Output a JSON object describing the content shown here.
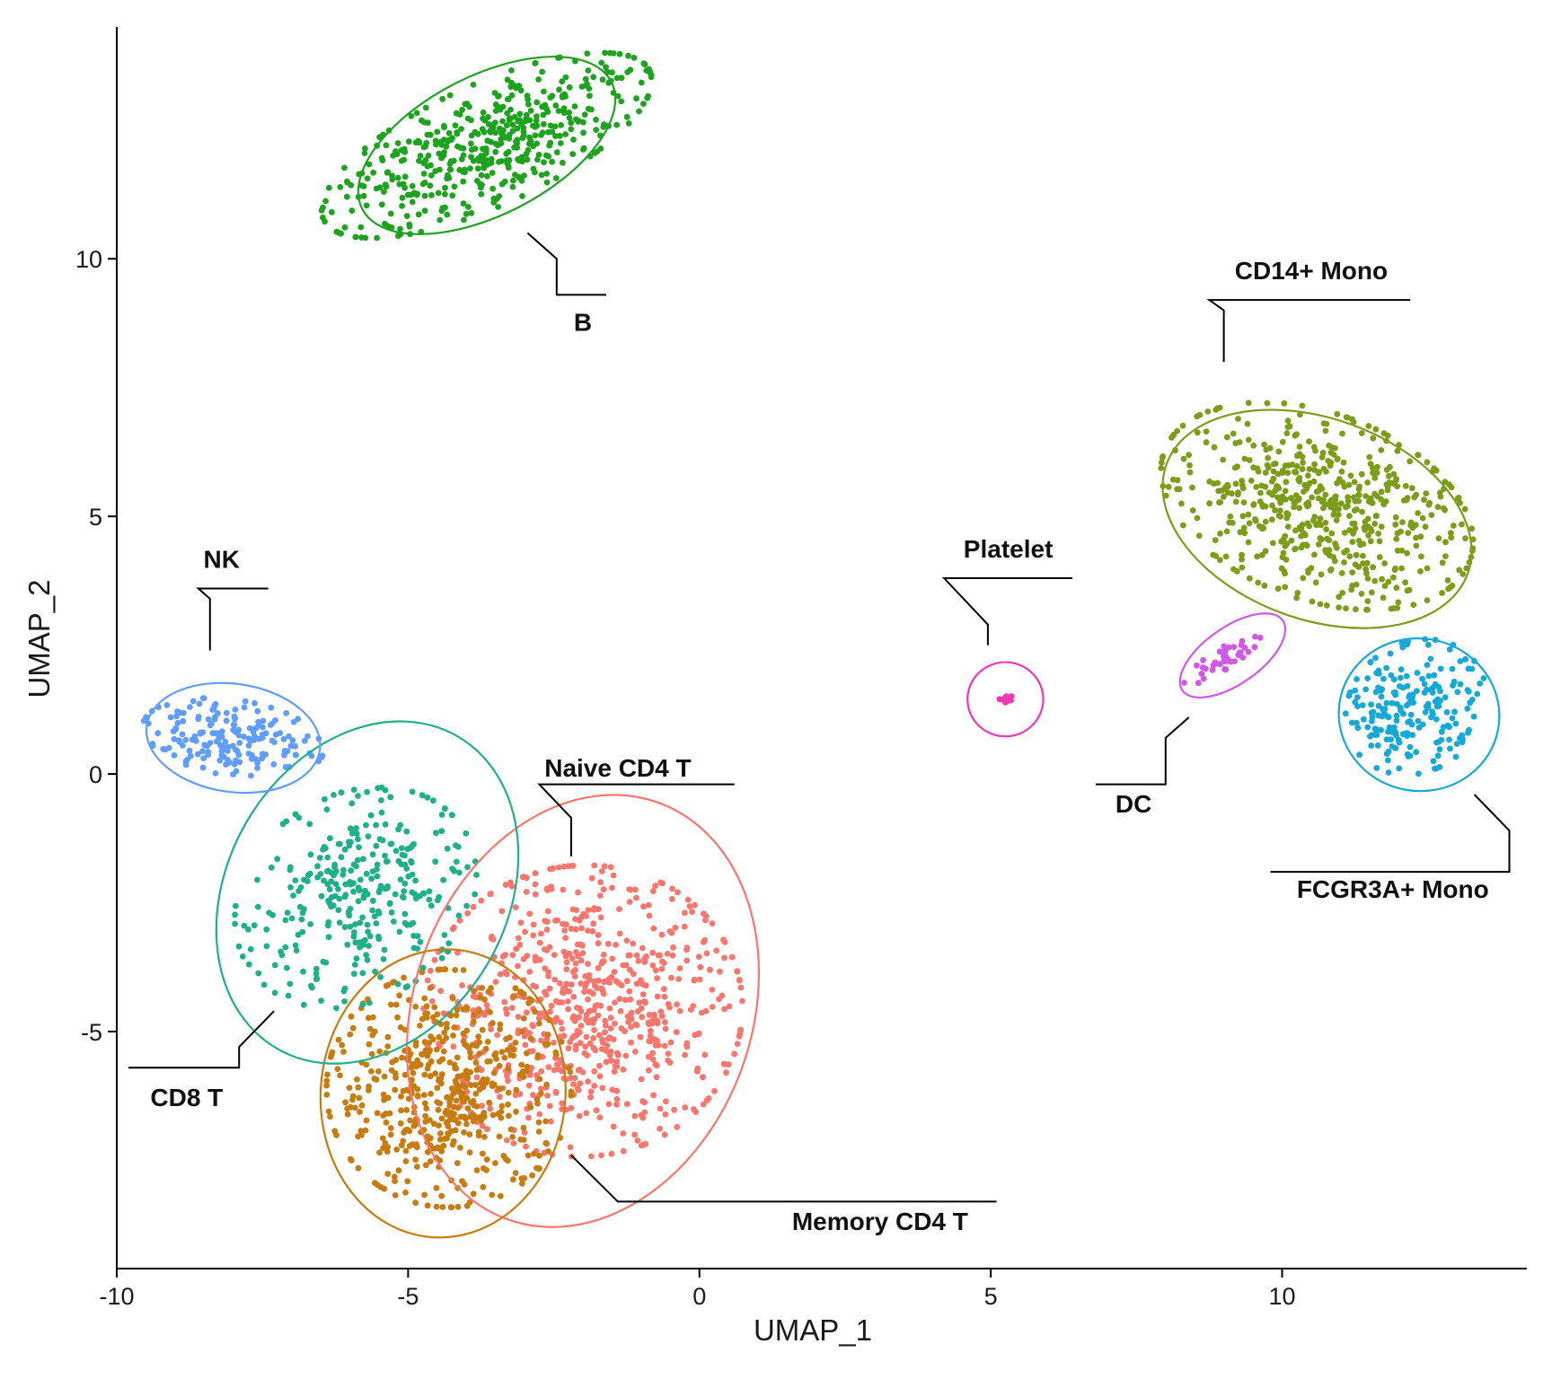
{
  "chart_data": {
    "type": "scatter",
    "title": "",
    "xlabel": "UMAP_1",
    "ylabel": "UMAP_2",
    "xlim": [
      -10,
      14.2
    ],
    "ylim": [
      -9.6,
      14.5
    ],
    "x_ticks": [
      -10,
      -5,
      0,
      5,
      10
    ],
    "y_ticks": [
      -5,
      0,
      5,
      10
    ],
    "x_tick_labels": [
      "-10",
      "-5",
      "0",
      "5",
      "10"
    ],
    "y_tick_labels": [
      "-5",
      "0",
      "5",
      "10"
    ],
    "grid": false,
    "legend": "none",
    "clusters": [
      {
        "name": "Naive CD4 T",
        "color": "#F8766D",
        "n": 700,
        "center": [
          -2.0,
          -4.6
        ],
        "spread": [
          1.3,
          1.35
        ],
        "rotation": -15,
        "ellipse": {
          "center": [
            -2.0,
            -4.6
          ],
          "rx": 2.9,
          "ry": 4.3,
          "angle": -20
        },
        "leader": [
          [
            -2.2,
            -1.6
          ],
          [
            -2.2,
            -0.85
          ],
          [
            -2.75,
            -0.2
          ],
          [
            0.6,
            -0.2
          ]
        ],
        "label_pos": [
          -1.4,
          -0.05
        ]
      },
      {
        "name": "Memory CD4 T",
        "color": "#C77C11",
        "n": 520,
        "center": [
          -4.3,
          -6.1
        ],
        "spread": [
          1.0,
          1.1
        ],
        "rotation": 0,
        "ellipse": {
          "center": [
            -4.4,
            -6.2
          ],
          "rx": 2.1,
          "ry": 2.8,
          "angle": -5
        },
        "leader": [
          [
            -2.2,
            -7.4
          ],
          [
            -1.4,
            -8.3
          ],
          [
            5.1,
            -8.3
          ]
        ],
        "label_pos": [
          3.1,
          -8.85
        ]
      },
      {
        "name": "CD8 T",
        "color": "#20B089",
        "n": 320,
        "center": [
          -5.9,
          -2.4
        ],
        "spread": [
          0.9,
          1.1
        ],
        "rotation": -40,
        "ellipse": {
          "center": [
            -5.7,
            -2.3
          ],
          "rx": 2.4,
          "ry": 3.5,
          "angle": -30
        },
        "leader": [
          [
            -7.3,
            -4.6
          ],
          [
            -7.9,
            -5.3
          ],
          [
            -7.9,
            -5.7
          ],
          [
            -9.8,
            -5.7
          ]
        ],
        "label_pos": [
          -8.8,
          -6.45
        ]
      },
      {
        "name": "NK",
        "color": "#619CFF",
        "n": 180,
        "center": [
          -8.0,
          0.7
        ],
        "spread": [
          0.75,
          0.35
        ],
        "rotation": -10,
        "ellipse": {
          "center": [
            -8.0,
            0.7
          ],
          "rx": 1.5,
          "ry": 1.05,
          "angle": -8
        },
        "leader": [
          [
            -8.4,
            2.4
          ],
          [
            -8.4,
            3.4
          ],
          [
            -8.6,
            3.6
          ],
          [
            -7.4,
            3.6
          ]
        ],
        "label_pos": [
          -8.2,
          4.0
        ]
      },
      {
        "name": "B",
        "color": "#1FA21F",
        "n": 480,
        "center": [
          -3.65,
          12.2
        ],
        "spread": [
          1.5,
          0.55
        ],
        "rotation": 28,
        "ellipse": {
          "center": [
            -3.65,
            12.2
          ],
          "rx": 2.4,
          "ry": 1.35,
          "angle": 27
        },
        "leader": [
          [
            -2.95,
            10.5
          ],
          [
            -2.45,
            10.0
          ],
          [
            -2.45,
            9.3
          ],
          [
            -1.6,
            9.3
          ]
        ],
        "label_pos": [
          -2.0,
          8.6
        ]
      },
      {
        "name": "CD14+ Mono",
        "color": "#7C9D1A",
        "n": 560,
        "center": [
          10.6,
          5.2
        ],
        "spread": [
          1.35,
          0.85
        ],
        "rotation": -25,
        "ellipse": {
          "center": [
            10.6,
            4.95
          ],
          "rx": 2.75,
          "ry": 1.95,
          "angle": -20
        },
        "leader": [
          [
            9.0,
            8.0
          ],
          [
            9.0,
            9.0
          ],
          [
            8.75,
            9.2
          ],
          [
            12.2,
            9.2
          ]
        ],
        "label_pos": [
          10.5,
          9.6
        ]
      },
      {
        "name": "FCGR3A+ Mono",
        "color": "#16A8D6",
        "n": 210,
        "center": [
          12.3,
          1.3
        ],
        "spread": [
          0.55,
          0.65
        ],
        "rotation": -30,
        "ellipse": {
          "center": [
            12.35,
            1.15
          ],
          "rx": 1.38,
          "ry": 1.48,
          "angle": -10
        },
        "leader": [
          [
            13.3,
            -0.4
          ],
          [
            13.9,
            -1.1
          ],
          [
            13.9,
            -1.9
          ],
          [
            9.8,
            -1.9
          ]
        ],
        "label_pos": [
          11.9,
          -2.4
        ]
      },
      {
        "name": "DC",
        "color": "#D058E6",
        "n": 45,
        "center": [
          9.1,
          2.3
        ],
        "spread": [
          0.45,
          0.1
        ],
        "rotation": 35,
        "ellipse": {
          "center": [
            9.15,
            2.3
          ],
          "rx": 1.05,
          "ry": 0.55,
          "angle": 35
        },
        "leader": [
          [
            8.4,
            1.1
          ],
          [
            8.0,
            0.7
          ],
          [
            8.0,
            -0.2
          ],
          [
            6.8,
            -0.2
          ]
        ],
        "label_pos": [
          7.45,
          -0.75
        ]
      },
      {
        "name": "Platelet",
        "color": "#F038B5",
        "n": 12,
        "center": [
          5.25,
          1.45
        ],
        "spread": [
          0.06,
          0.05
        ],
        "rotation": 0,
        "ellipse": {
          "center": [
            5.25,
            1.45
          ],
          "rx": 0.65,
          "ry": 0.72,
          "angle": 0
        },
        "leader": [
          [
            4.95,
            2.5
          ],
          [
            4.95,
            2.9
          ],
          [
            4.2,
            3.8
          ],
          [
            6.4,
            3.8
          ]
        ],
        "label_pos": [
          5.3,
          4.2
        ]
      }
    ]
  }
}
